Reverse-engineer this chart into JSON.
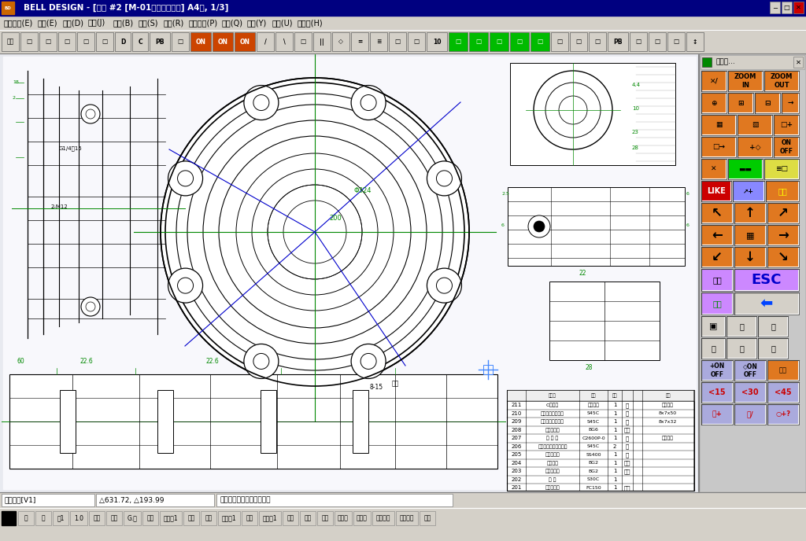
{
  "title_bar": "BELL DESIGN - [図面 #2 [M-01ウズ巻ポンプ] A4横, 1/3]",
  "menu_items": [
    "ファイル(E)",
    "編集(E)",
    "作画(D)",
    "注記(J)",
    "部品(B)",
    "寸法(S)",
    "調整(R)",
    "スナップ(P)",
    "支援(Q)",
    "表示(Y)",
    "環境(U)",
    "ヘルプ(H)"
  ],
  "statusbar_items": [
    "倍率拡大[V1]",
    "△631.72, △193.99",
    "コマンドを入力して下さい"
  ],
  "bottom_buttons": [
    "実",
    "線",
    "太1",
    "1.0",
    "相対",
    "角才",
    "G.才",
    "作画",
    "作画層1",
    "図面",
    "注記",
    "作画層1",
    "寸法",
    "作画層1",
    "領域",
    "一部",
    "追才",
    "候補有",
    "表示才",
    "フリー才",
    "マスク才",
    "部品"
  ],
  "titlebar_bg": "#000080",
  "menubar_bg": "#d4d0c8",
  "toolbar_bg": "#d4d0c8",
  "cad_bg": "#f4f4f8",
  "cad_line": "#000000",
  "green": "#008800",
  "blue": "#0000cc",
  "orange": "#e07820",
  "right_panel_bg": "#d4d0c8"
}
